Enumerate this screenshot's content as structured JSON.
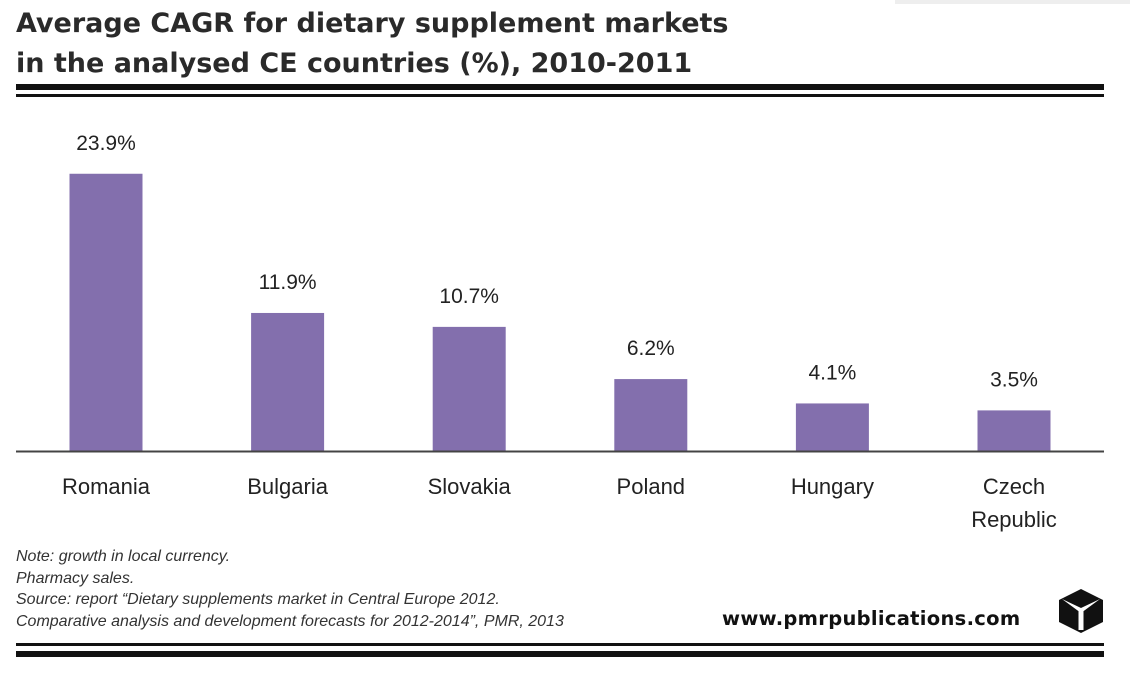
{
  "header": {
    "title_line1": "Average CAGR for dietary supplement markets",
    "title_line2": "in the analysed CE countries (%), 2010-2011"
  },
  "chart_data": {
    "type": "bar",
    "title": "Average CAGR for dietary supplement markets in the analysed CE countries (%), 2010-2011",
    "categories": [
      "Romania",
      "Bulgaria",
      "Slovakia",
      "Poland",
      "Hungary",
      "Czech Republic"
    ],
    "category_lines": [
      [
        "Romania"
      ],
      [
        "Bulgaria"
      ],
      [
        "Slovakia"
      ],
      [
        "Poland"
      ],
      [
        "Hungary"
      ],
      [
        "Czech",
        "Republic"
      ]
    ],
    "values": [
      23.9,
      11.9,
      10.7,
      6.2,
      4.1,
      3.5
    ],
    "value_labels": [
      "23.9%",
      "11.9%",
      "10.7%",
      "6.2%",
      "4.1%",
      "3.5%"
    ],
    "xlabel": "",
    "ylabel": "",
    "ylim": [
      0,
      25
    ],
    "grid": false,
    "bar_color": "#836fad"
  },
  "footer": {
    "note1": "Note: growth in local currency.",
    "note2": "Pharmacy sales.",
    "note3": "Source: report “Dietary supplements market in Central Europe 2012.",
    "note4": "Comparative analysis and development forecasts for 2012-2014”, PMR, 2013",
    "website": "www.pmrpublications.com",
    "logo_icon": "pmr-logo-icon"
  }
}
